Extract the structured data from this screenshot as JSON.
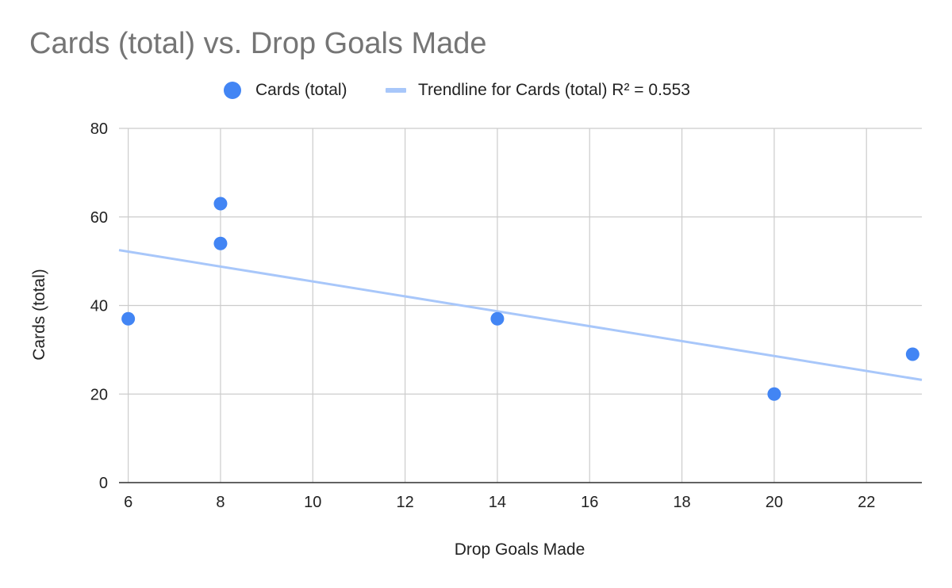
{
  "chart_data": {
    "type": "scatter",
    "title": "Cards (total) vs. Drop Goals Made",
    "xlabel": "Drop Goals Made",
    "ylabel": "Cards (total)",
    "xlim": [
      5.8,
      23.2
    ],
    "ylim": [
      0,
      80
    ],
    "x_ticks": [
      6,
      8,
      10,
      12,
      14,
      16,
      18,
      20,
      22
    ],
    "y_ticks": [
      0,
      20,
      40,
      60,
      80
    ],
    "grid": true,
    "legend_position": "top",
    "series": [
      {
        "name": "Cards (total)",
        "color": "#4285f4",
        "points": [
          {
            "x": 6,
            "y": 37
          },
          {
            "x": 8,
            "y": 63
          },
          {
            "x": 8,
            "y": 54
          },
          {
            "x": 14,
            "y": 37
          },
          {
            "x": 20,
            "y": 20
          },
          {
            "x": 23,
            "y": 29
          }
        ]
      }
    ],
    "trendline": {
      "name": "Trendline for Cards (total) R² = 0.553",
      "color": "#a8c7fa",
      "start": {
        "x": 5.8,
        "y": 52.5
      },
      "end": {
        "x": 23.2,
        "y": 23.2
      }
    }
  }
}
